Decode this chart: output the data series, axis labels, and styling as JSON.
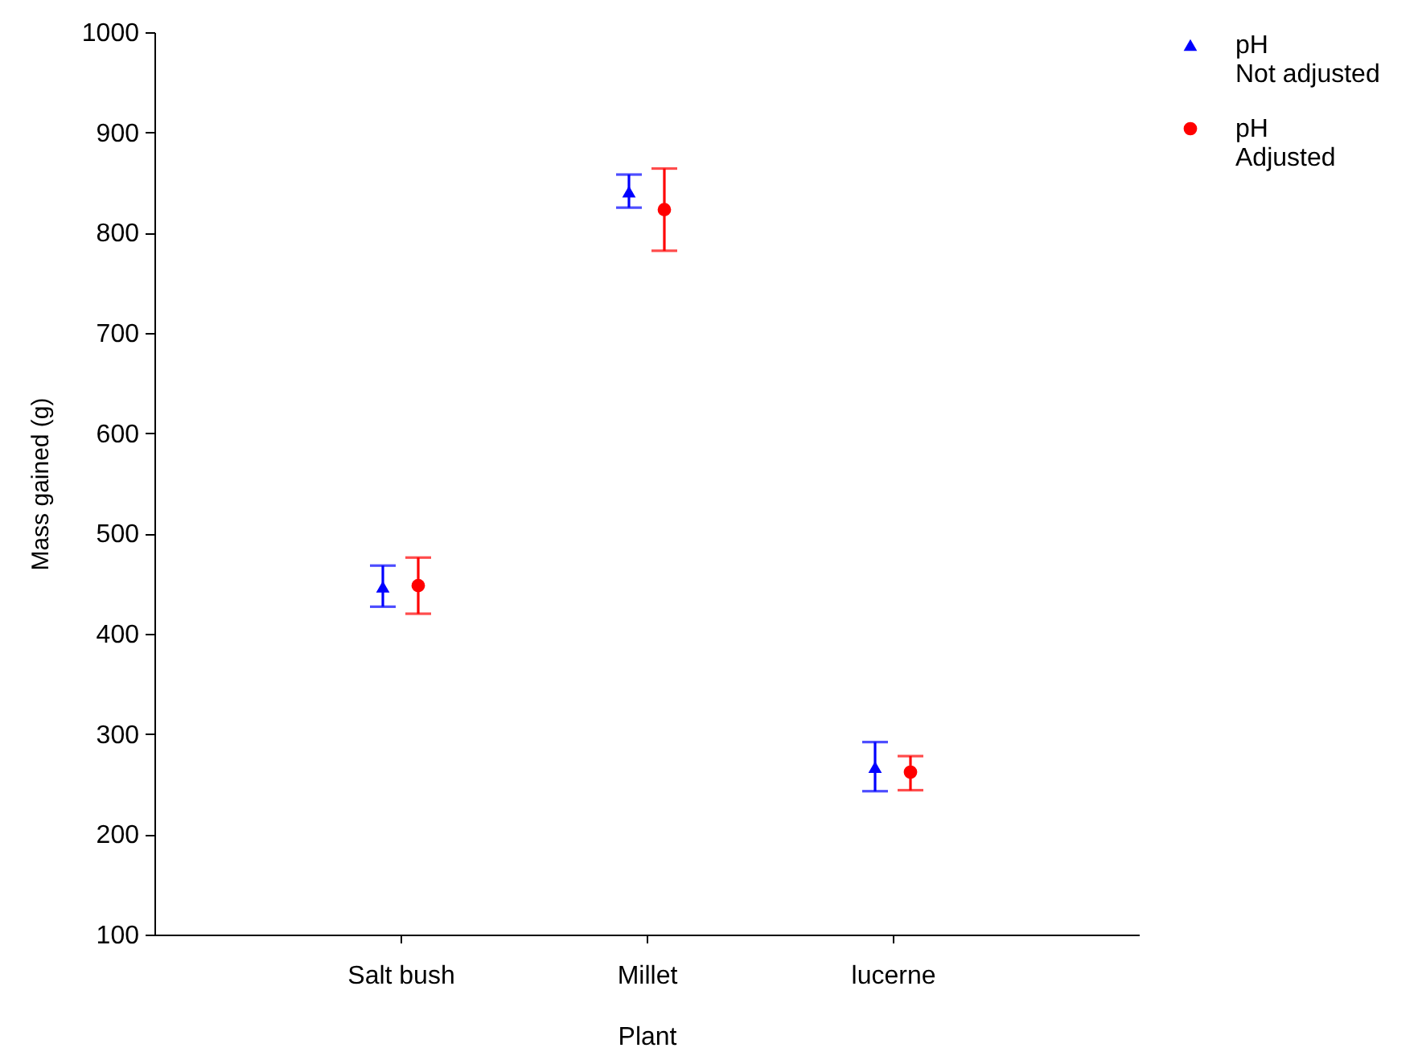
{
  "chart_data": {
    "type": "scatter",
    "xlabel": "Plant",
    "ylabel": "Mass gained (g)",
    "categories": [
      "Salt bush",
      "Millet",
      "lucerne"
    ],
    "series": [
      {
        "name": "pH Not adjusted",
        "color": "#0000ff",
        "marker": "triangle",
        "values": [
          447,
          841,
          267
        ],
        "errors": [
          [
            427,
            468
          ],
          [
            825,
            858
          ],
          [
            243,
            292
          ]
        ]
      },
      {
        "name": "pH Adjusted",
        "color": "#ff0000",
        "marker": "circle",
        "values": [
          448,
          823,
          262
        ],
        "errors": [
          [
            420,
            476
          ],
          [
            782,
            864
          ],
          [
            244,
            278
          ]
        ]
      }
    ],
    "ylim": [
      100,
      1000
    ],
    "yticks": [
      100,
      200,
      300,
      400,
      500,
      600,
      700,
      800,
      900,
      1000
    ],
    "legend": "top right"
  }
}
